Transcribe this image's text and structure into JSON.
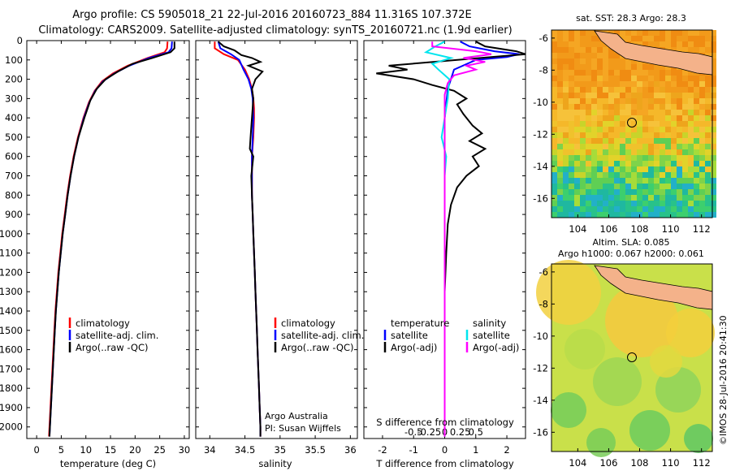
{
  "header": {
    "title_line1": "Argo profile: CS 5905018_21 22-Jul-2016 20160723_884 11.316S 107.372E",
    "title_line2": "Climatology: CARS2009. Satellite-adjusted climatology: synTS_20160721.nc (1.9d earlier)"
  },
  "colors": {
    "climatology": "#ff0000",
    "satellite_adj": "#0000ff",
    "argo": "#000000",
    "salinity_satellite": "#00e5ee",
    "salinity_argo": "#ff00ff",
    "land": "#f4b28a"
  },
  "chart_data": [
    {
      "type": "line",
      "id": "temperature",
      "xlabel": "temperature (deg C)",
      "ylabel": "",
      "xlim": [
        -2,
        31
      ],
      "ylim": [
        2060,
        0
      ],
      "xticks": [
        "0",
        "5",
        "10",
        "15",
        "20",
        "25",
        "30"
      ],
      "yticks": [
        "0",
        "100",
        "200",
        "300",
        "400",
        "500",
        "600",
        "700",
        "800",
        "900",
        "1000",
        "1100",
        "1200",
        "1300",
        "1400",
        "1500",
        "1600",
        "1700",
        "1800",
        "1900",
        "2000"
      ],
      "legend": [
        "climatology",
        "satellite-adj. clim.",
        "Argo(..raw -QC)"
      ],
      "series": [
        {
          "name": "climatology",
          "color": "#ff0000",
          "points": [
            [
              26.6,
              5
            ],
            [
              26.5,
              40
            ],
            [
              26.0,
              60
            ],
            [
              22.5,
              90
            ],
            [
              18.5,
              130
            ],
            [
              15.5,
              170
            ],
            [
              13.3,
              210
            ],
            [
              11.8,
              260
            ],
            [
              10.6,
              320
            ],
            [
              9.5,
              400
            ],
            [
              8.4,
              500
            ],
            [
              7.5,
              600
            ],
            [
              6.8,
              700
            ],
            [
              6.2,
              800
            ],
            [
              5.7,
              900
            ],
            [
              5.2,
              1000
            ],
            [
              4.8,
              1100
            ],
            [
              4.4,
              1200
            ],
            [
              4.1,
              1300
            ],
            [
              3.8,
              1400
            ],
            [
              3.6,
              1500
            ],
            [
              3.4,
              1600
            ],
            [
              3.2,
              1700
            ],
            [
              3.0,
              1800
            ],
            [
              2.8,
              1900
            ],
            [
              2.6,
              2000
            ],
            [
              2.5,
              2050
            ]
          ]
        },
        {
          "name": "satellite-adj. clim.",
          "color": "#0000ff",
          "points": [
            [
              27.5,
              5
            ],
            [
              27.4,
              40
            ],
            [
              26.8,
              60
            ],
            [
              22.8,
              90
            ],
            [
              18.8,
              130
            ],
            [
              15.8,
              170
            ],
            [
              13.5,
              210
            ],
            [
              11.9,
              260
            ],
            [
              10.7,
              320
            ],
            [
              9.6,
              400
            ],
            [
              8.5,
              500
            ],
            [
              7.6,
              600
            ],
            [
              6.9,
              700
            ],
            [
              6.3,
              800
            ],
            [
              5.8,
              900
            ],
            [
              5.3,
              1000
            ],
            [
              4.9,
              1100
            ],
            [
              4.5,
              1200
            ],
            [
              4.2,
              1300
            ],
            [
              3.9,
              1400
            ],
            [
              3.7,
              1500
            ],
            [
              3.5,
              1600
            ],
            [
              3.3,
              1700
            ],
            [
              3.1,
              1800
            ],
            [
              2.9,
              1900
            ],
            [
              2.7,
              2000
            ],
            [
              2.6,
              2050
            ]
          ]
        },
        {
          "name": "Argo(..raw -QC)",
          "color": "#000000",
          "points": [
            [
              28.0,
              5
            ],
            [
              28.0,
              40
            ],
            [
              27.2,
              60
            ],
            [
              23.5,
              90
            ],
            [
              19.5,
              120
            ],
            [
              16.5,
              160
            ],
            [
              14.0,
              200
            ],
            [
              12.2,
              250
            ],
            [
              10.9,
              310
            ],
            [
              9.7,
              400
            ],
            [
              8.5,
              500
            ],
            [
              7.6,
              600
            ],
            [
              6.9,
              700
            ],
            [
              6.3,
              800
            ],
            [
              5.8,
              900
            ],
            [
              5.3,
              1000
            ],
            [
              4.9,
              1100
            ],
            [
              4.5,
              1200
            ],
            [
              4.2,
              1300
            ],
            [
              3.9,
              1400
            ],
            [
              3.7,
              1500
            ],
            [
              3.5,
              1600
            ],
            [
              3.3,
              1700
            ],
            [
              3.1,
              1800
            ],
            [
              2.9,
              1900
            ],
            [
              2.7,
              2000
            ],
            [
              2.6,
              2050
            ]
          ]
        }
      ]
    },
    {
      "type": "line",
      "id": "salinity",
      "xlabel": "salinity",
      "xlim": [
        33.8,
        36.1
      ],
      "ylim": [
        2060,
        0
      ],
      "xticks": [
        "34",
        "34.5",
        "35",
        "35.5",
        "36"
      ],
      "legend": [
        "climatology",
        "satellite-adj. clim.",
        "Argo(..raw -QC)"
      ],
      "annotations": [
        "Argo Australia",
        "PI: Susan Wijffels"
      ],
      "series": [
        {
          "name": "climatology",
          "color": "#ff0000",
          "points": [
            [
              34.07,
              5
            ],
            [
              34.07,
              40
            ],
            [
              34.2,
              70
            ],
            [
              34.4,
              100
            ],
            [
              34.5,
              150
            ],
            [
              34.56,
              200
            ],
            [
              34.6,
              250
            ],
            [
              34.62,
              300
            ],
            [
              34.63,
              350
            ],
            [
              34.63,
              400
            ],
            [
              34.62,
              500
            ],
            [
              34.6,
              600
            ],
            [
              34.6,
              700
            ],
            [
              34.6,
              800
            ],
            [
              34.61,
              900
            ],
            [
              34.62,
              1000
            ],
            [
              34.63,
              1100
            ],
            [
              34.64,
              1200
            ],
            [
              34.65,
              1300
            ],
            [
              34.66,
              1400
            ],
            [
              34.67,
              1500
            ],
            [
              34.68,
              1600
            ],
            [
              34.69,
              1700
            ],
            [
              34.7,
              1800
            ],
            [
              34.71,
              1900
            ],
            [
              34.72,
              2000
            ],
            [
              34.72,
              2050
            ]
          ]
        },
        {
          "name": "satellite-adj. clim.",
          "color": "#0000ff",
          "points": [
            [
              34.12,
              5
            ],
            [
              34.15,
              40
            ],
            [
              34.3,
              70
            ],
            [
              34.42,
              100
            ],
            [
              34.48,
              150
            ],
            [
              34.55,
              200
            ],
            [
              34.59,
              250
            ],
            [
              34.61,
              300
            ],
            [
              34.62,
              400
            ],
            [
              34.61,
              500
            ],
            [
              34.6,
              600
            ],
            [
              34.6,
              700
            ],
            [
              34.6,
              800
            ],
            [
              34.61,
              900
            ],
            [
              34.62,
              1000
            ],
            [
              34.63,
              1100
            ],
            [
              34.64,
              1200
            ],
            [
              34.65,
              1300
            ],
            [
              34.66,
              1400
            ],
            [
              34.67,
              1500
            ],
            [
              34.68,
              1600
            ],
            [
              34.69,
              1700
            ],
            [
              34.7,
              1800
            ],
            [
              34.71,
              1900
            ],
            [
              34.72,
              2000
            ],
            [
              34.72,
              2050
            ]
          ]
        },
        {
          "name": "Argo(..raw -QC)",
          "color": "#000000",
          "points": [
            [
              34.12,
              5
            ],
            [
              34.2,
              30
            ],
            [
              34.35,
              50
            ],
            [
              34.45,
              75
            ],
            [
              34.6,
              90
            ],
            [
              34.72,
              110
            ],
            [
              34.55,
              130
            ],
            [
              34.75,
              160
            ],
            [
              34.65,
              200
            ],
            [
              34.6,
              250
            ],
            [
              34.62,
              300
            ],
            [
              34.6,
              400
            ],
            [
              34.58,
              500
            ],
            [
              34.57,
              560
            ],
            [
              34.62,
              600
            ],
            [
              34.59,
              700
            ],
            [
              34.6,
              800
            ],
            [
              34.61,
              900
            ],
            [
              34.62,
              1000
            ],
            [
              34.63,
              1100
            ],
            [
              34.64,
              1200
            ],
            [
              34.65,
              1300
            ],
            [
              34.66,
              1400
            ],
            [
              34.67,
              1500
            ],
            [
              34.68,
              1600
            ],
            [
              34.69,
              1700
            ],
            [
              34.7,
              1800
            ],
            [
              34.71,
              1900
            ],
            [
              34.72,
              2000
            ],
            [
              34.72,
              2050
            ]
          ]
        }
      ]
    },
    {
      "type": "line",
      "id": "difference",
      "xlabel": "T difference from climatology",
      "xlabel_top": "S difference from climatology",
      "xlim": [
        -2.6,
        2.6
      ],
      "ylim": [
        2060,
        0
      ],
      "xticks": [
        "-2",
        "-1",
        "0",
        "1",
        "2"
      ],
      "xticks_s": [
        "-0.5",
        "-0.25",
        "0",
        "0.25",
        "0.5"
      ],
      "legend_temperature": {
        "title": "temperature",
        "items": [
          "satellite",
          "Argo(-adj)"
        ]
      },
      "legend_salinity": {
        "title": "salinity",
        "items": [
          "satellite",
          "Argo(-adj)"
        ]
      },
      "series": [
        {
          "name": "temperature satellite",
          "color": "#0000ff",
          "points": [
            [
              0.5,
              5
            ],
            [
              0.8,
              30
            ],
            [
              1.6,
              55
            ],
            [
              2.4,
              70
            ],
            [
              2.0,
              85
            ],
            [
              1.0,
              100
            ],
            [
              0.3,
              150
            ],
            [
              0.1,
              250
            ],
            [
              0,
              400
            ],
            [
              0,
              2050
            ]
          ]
        },
        {
          "name": "temperature Argo(-adj)",
          "color": "#000000",
          "points": [
            [
              1.0,
              5
            ],
            [
              1.3,
              30
            ],
            [
              2.3,
              55
            ],
            [
              2.6,
              70
            ],
            [
              1.5,
              85
            ],
            [
              -1.8,
              130
            ],
            [
              -1.2,
              150
            ],
            [
              -2.2,
              170
            ],
            [
              -1.0,
              200
            ],
            [
              -0.4,
              230
            ],
            [
              0.3,
              260
            ],
            [
              0.7,
              300
            ],
            [
              0.4,
              330
            ],
            [
              0.6,
              380
            ],
            [
              0.9,
              440
            ],
            [
              1.2,
              480
            ],
            [
              0.8,
              520
            ],
            [
              1.3,
              560
            ],
            [
              0.9,
              600
            ],
            [
              1.1,
              650
            ],
            [
              0.7,
              700
            ],
            [
              0.4,
              760
            ],
            [
              0.2,
              850
            ],
            [
              0.1,
              950
            ],
            [
              0.05,
              1100
            ],
            [
              0,
              1300
            ],
            [
              0,
              2050
            ]
          ]
        },
        {
          "name": "salinity satellite",
          "color": "#00e5ee",
          "points": [
            [
              0,
              5
            ],
            [
              -0.3,
              30
            ],
            [
              -0.6,
              60
            ],
            [
              0.2,
              90
            ],
            [
              -0.4,
              120
            ],
            [
              -0.2,
              150
            ],
            [
              0.15,
              200
            ],
            [
              0.1,
              300
            ],
            [
              0,
              400
            ],
            [
              -0.1,
              500
            ],
            [
              0.05,
              600
            ],
            [
              0,
              700
            ],
            [
              0,
              2050
            ]
          ]
        },
        {
          "name": "salinity Argo(-adj)",
          "color": "#ff00ff",
          "points": [
            [
              -0.4,
              5
            ],
            [
              -0.4,
              30
            ],
            [
              1.0,
              55
            ],
            [
              1.5,
              70
            ],
            [
              0.6,
              90
            ],
            [
              1.3,
              110
            ],
            [
              0.7,
              130
            ],
            [
              1.0,
              150
            ],
            [
              0.3,
              180
            ],
            [
              0.1,
              220
            ],
            [
              0,
              280
            ],
            [
              0,
              2050
            ]
          ]
        }
      ]
    }
  ],
  "maps": {
    "sst": {
      "title": "sat. SST: 28.3  Argo: 28.3",
      "xticks": [
        "104",
        "106",
        "108",
        "110",
        "112"
      ],
      "yticks": [
        "-6",
        "-8",
        "-10",
        "-12",
        "-14",
        "-16"
      ]
    },
    "sla": {
      "title_line1": "Altim. SLA: 0.085",
      "title_line2": "Argo h1000: 0.067  h2000: 0.061",
      "xticks": [
        "104",
        "106",
        "108",
        "110",
        "112"
      ],
      "yticks": [
        "-6",
        "-8",
        "-10",
        "-12",
        "-14",
        "-16"
      ]
    },
    "profile_location": {
      "lon": 107.372,
      "lat": -11.316
    },
    "xlim": [
      102.3,
      112.7
    ],
    "ylim": [
      -17.2,
      -5.5
    ]
  },
  "footer": {
    "stamp": "©IMOS 28-Jul-2016 20:41:30"
  }
}
